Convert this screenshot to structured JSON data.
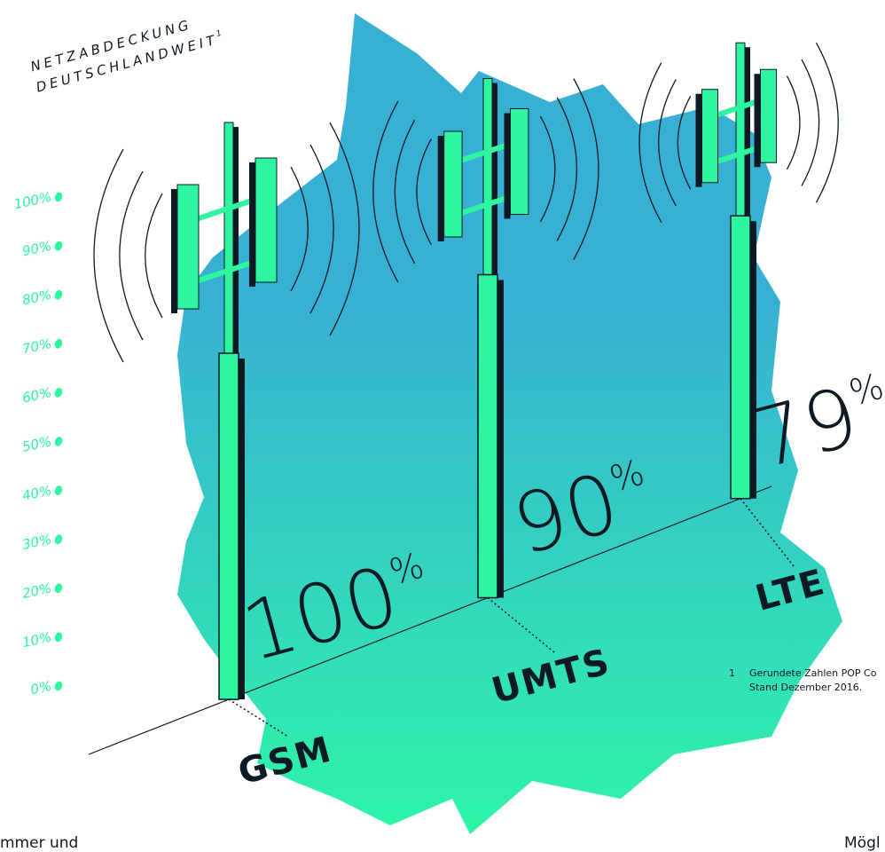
{
  "chart_data": {
    "type": "bar",
    "title": [
      "NETZABDECKUNG",
      "DEUTSCHLANDWEIT"
    ],
    "title_note": "1",
    "categories": [
      "GSM",
      "UMTS",
      "LTE"
    ],
    "values": [
      100,
      90,
      79
    ],
    "value_labels": [
      "100%",
      "90%",
      "79%"
    ],
    "color": "#2ef5a0",
    "ylim": [
      0,
      100
    ],
    "yticks": [
      {
        "value": 0,
        "label": "0%"
      },
      {
        "value": 10,
        "label": "10%"
      },
      {
        "value": 20,
        "label": "20%"
      },
      {
        "value": 30,
        "label": "30%"
      },
      {
        "value": 40,
        "label": "40%"
      },
      {
        "value": 50,
        "label": "50%"
      },
      {
        "value": 60,
        "label": "60%"
      },
      {
        "value": 70,
        "label": "70%"
      },
      {
        "value": 80,
        "label": "80%"
      },
      {
        "value": 90,
        "label": "90%"
      },
      {
        "value": 100,
        "label": "100%"
      }
    ],
    "footnote": [
      "1",
      "Gerundete Zahlen POP Co",
      "Stand Dezember 2016."
    ],
    "page_fragments": [
      "mmer und",
      "Mögl"
    ]
  }
}
